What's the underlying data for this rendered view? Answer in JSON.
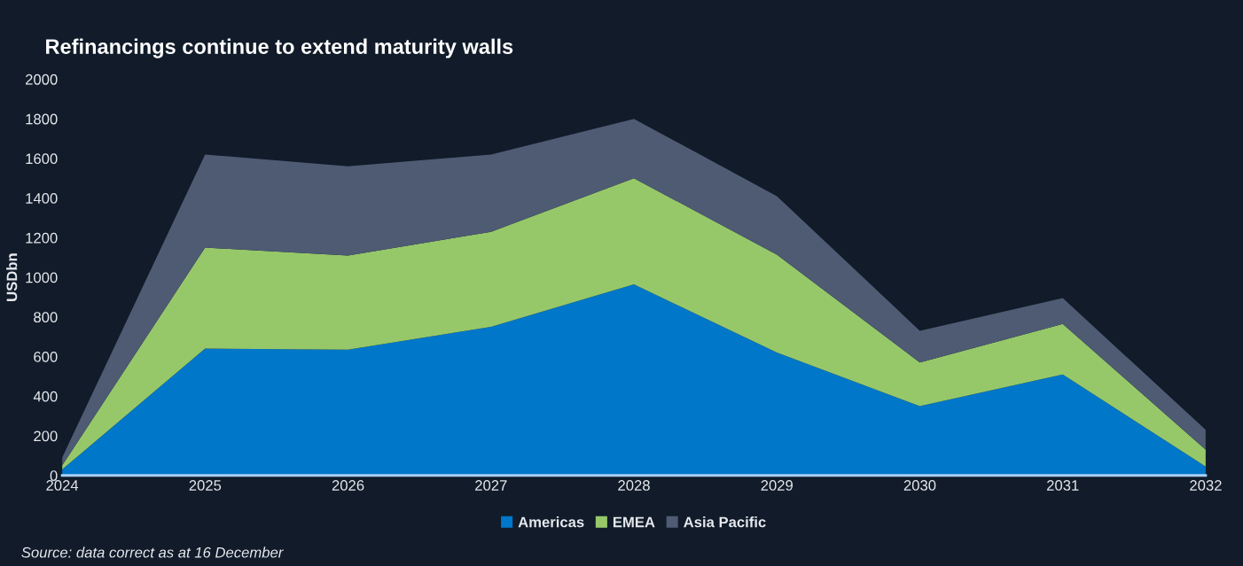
{
  "chart_data": {
    "type": "area",
    "stacked": true,
    "title": "Refinancings continue to extend maturity walls",
    "ylabel": "USDbn",
    "categories": [
      "2024",
      "2025",
      "2026",
      "2027",
      "2028",
      "2029",
      "2030",
      "2031",
      "2032"
    ],
    "series": [
      {
        "name": "Americas",
        "color": "#0077c8",
        "values": [
          30,
          640,
          635,
          750,
          965,
          620,
          350,
          510,
          45
        ]
      },
      {
        "name": "EMEA",
        "color": "#96c86a",
        "values": [
          20,
          510,
          475,
          480,
          535,
          495,
          220,
          255,
          85
        ]
      },
      {
        "name": "Asia Pacific",
        "color": "#4e5b73",
        "values": [
          40,
          470,
          450,
          390,
          300,
          295,
          160,
          130,
          100
        ]
      }
    ],
    "ylim": [
      0,
      2000
    ],
    "yticks": [
      0,
      200,
      400,
      600,
      800,
      1000,
      1200,
      1400,
      1600,
      1800,
      2000
    ],
    "grid": false,
    "legend": "bottom",
    "annotations": [
      "Source: data correct as at 16 December"
    ]
  }
}
